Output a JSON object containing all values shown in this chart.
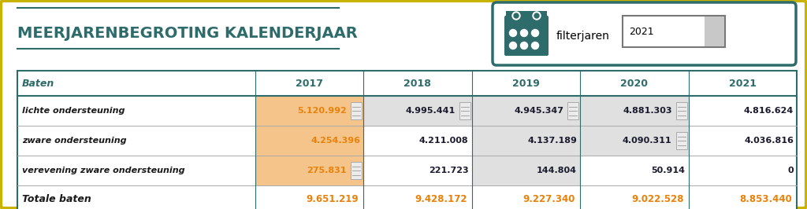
{
  "title": "MEERJARENBEGROTING KALENDERJAAR",
  "filter_label": "filterjaren",
  "filter_value": "2021",
  "bg_color": "#FFFFFF",
  "outer_border_color": "#C8B400",
  "table_border_color": "#2E6B6B",
  "title_color": "#2E6B6B",
  "orange_text": "#E8820A",
  "col_headers": [
    "Baten",
    "2017",
    "2018",
    "2019",
    "2020",
    "2021"
  ],
  "rows": [
    {
      "label": "lichte ondersteuning",
      "values": [
        "5.120.992",
        "4.995.441",
        "4.945.347",
        "4.881.303",
        "4.816.624"
      ],
      "orange_bg_cols": [
        0
      ],
      "gray_bg_cols": [
        1,
        2,
        3
      ],
      "icon_cols": [
        0,
        1,
        2,
        3
      ]
    },
    {
      "label": "zware ondersteuning",
      "values": [
        "4.254.396",
        "4.211.008",
        "4.137.189",
        "4.090.311",
        "4.036.816"
      ],
      "orange_bg_cols": [
        0
      ],
      "gray_bg_cols": [
        2,
        3
      ],
      "icon_cols": [
        3
      ]
    },
    {
      "label": "verevening zware ondersteuning",
      "values": [
        "275.831",
        "221.723",
        "144.804",
        "50.914",
        "0"
      ],
      "orange_bg_cols": [
        0
      ],
      "gray_bg_cols": [
        2
      ],
      "icon_cols": [
        0
      ]
    }
  ],
  "totals_row": {
    "label": "Totale baten",
    "values": [
      "9.651.219",
      "9.428.172",
      "9.227.340",
      "9.022.528",
      "8.853.440"
    ]
  },
  "orange_bg": "#F5C48A",
  "gray_bg": "#E0E0E0",
  "teal_color": "#2E6B6B"
}
